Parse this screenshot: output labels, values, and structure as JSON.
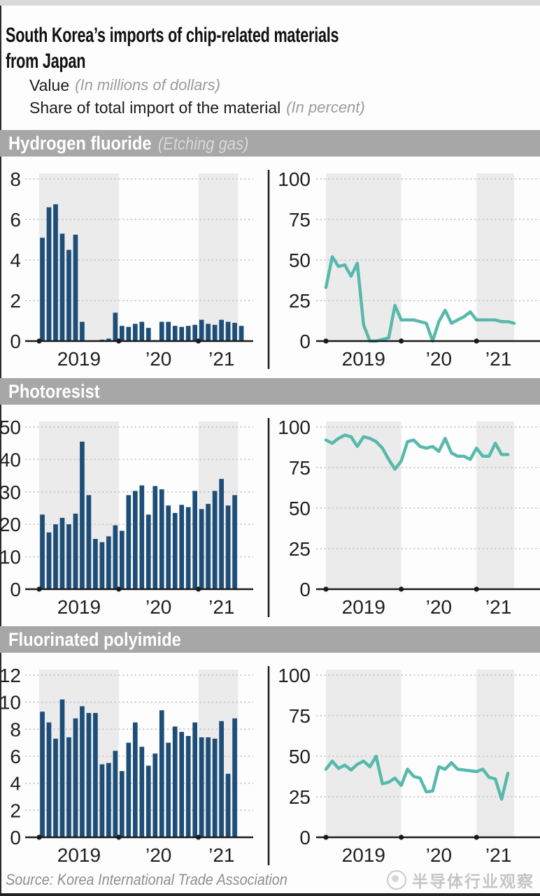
{
  "page_title": "South Korea’s imports of chip-related materials from Japan",
  "legend": {
    "value_label": "Value",
    "value_note": "(In millions of dollars)",
    "share_label": "Share of total import of the material",
    "share_note": "(In percent)"
  },
  "sections": [
    {
      "title": "Hydrogen fluoride",
      "note": "(Etching gas)"
    },
    {
      "title": "Photoresist",
      "note": ""
    },
    {
      "title": "Fluorinated polyimide",
      "note": ""
    }
  ],
  "source": "Source: Korea International Trade Association",
  "watermark": "半导体行业观察",
  "colors": {
    "bar": "#1d4e78",
    "line": "#57b9ac",
    "legend_line": "#82c7bc",
    "band": "#ebebeb",
    "grid": "#c8c8c8",
    "axis": "#1a1a1a",
    "tick_text": "#1f1f1f",
    "header_bg": "#a7a7a7"
  },
  "chart_data": [
    {
      "section": "Hydrogen fluoride",
      "type": "bar",
      "series_name": "Value",
      "unit": "millions of dollars",
      "frequency": "monthly",
      "start_month": "2019-01",
      "values": [
        5.1,
        6.6,
        6.75,
        5.3,
        4.5,
        5.25,
        0.95,
        0,
        0,
        0.07,
        0.12,
        1.4,
        0.75,
        0.7,
        0.85,
        0.95,
        0.65,
        0.05,
        0.95,
        0.95,
        0.75,
        0.7,
        0.75,
        0.8,
        1.05,
        0.85,
        0.8,
        1.05,
        0.95,
        0.9,
        0.75
      ],
      "ylim": [
        0,
        8
      ],
      "yticks": [
        0,
        2,
        4,
        6,
        8
      ],
      "xtick_labels": [
        "2019",
        "’20",
        "’21"
      ],
      "year_start_indices": [
        0,
        12,
        24
      ],
      "shaded_year_bands": [
        [
          0,
          12
        ],
        [
          24,
          30
        ]
      ],
      "grid": "dotted"
    },
    {
      "section": "Hydrogen fluoride",
      "type": "line",
      "series_name": "Share of total import",
      "unit": "percent",
      "frequency": "monthly",
      "start_month": "2019-01",
      "values": [
        33,
        52,
        46,
        47,
        40,
        48,
        10,
        0,
        0,
        1,
        2,
        22,
        13,
        13,
        13,
        12,
        11,
        0,
        12,
        19,
        11,
        13,
        15,
        18,
        13,
        13,
        13,
        13,
        12,
        12,
        11
      ],
      "ylim": [
        0,
        100
      ],
      "yticks": [
        0,
        25,
        50,
        75,
        100
      ],
      "xtick_labels": [
        "2019",
        "’20",
        "’21"
      ],
      "year_start_indices": [
        0,
        12,
        24
      ],
      "shaded_year_bands": [
        [
          0,
          12
        ],
        [
          24,
          30
        ]
      ],
      "grid": "dotted"
    },
    {
      "section": "Photoresist",
      "type": "bar",
      "series_name": "Value",
      "unit": "millions of dollars",
      "frequency": "monthly",
      "start_month": "2019-01",
      "values": [
        23,
        17.5,
        20,
        22,
        20,
        23.3,
        45.5,
        29,
        15.5,
        14.5,
        16.3,
        19.7,
        18,
        29,
        30.3,
        32,
        23,
        31.8,
        30.8,
        25.8,
        23.5,
        26,
        25.3,
        30.3,
        24.7,
        26.3,
        30.3,
        34,
        25.8,
        29
      ],
      "ylim": [
        0,
        50
      ],
      "yticks": [
        0,
        10,
        20,
        30,
        40,
        50
      ],
      "xtick_labels": [
        "2019",
        "’20",
        "’21"
      ],
      "year_start_indices": [
        0,
        12,
        24
      ],
      "shaded_year_bands": [
        [
          0,
          12
        ],
        [
          24,
          30
        ]
      ],
      "grid": "dotted"
    },
    {
      "section": "Photoresist",
      "type": "line",
      "series_name": "Share of total import",
      "unit": "percent",
      "frequency": "monthly",
      "start_month": "2019-01",
      "values": [
        92,
        90,
        93,
        95,
        94,
        88,
        94,
        93,
        91,
        87,
        80,
        74,
        79,
        91,
        92,
        88,
        87,
        88,
        85,
        93,
        84,
        82,
        82,
        80,
        87,
        82,
        82,
        90,
        83,
        83
      ],
      "ylim": [
        0,
        100
      ],
      "yticks": [
        0,
        25,
        50,
        75,
        100
      ],
      "xtick_labels": [
        "2019",
        "’20",
        "’21"
      ],
      "year_start_indices": [
        0,
        12,
        24
      ],
      "shaded_year_bands": [
        [
          0,
          12
        ],
        [
          24,
          30
        ]
      ],
      "grid": "dotted"
    },
    {
      "section": "Fluorinated polyimide",
      "type": "bar",
      "series_name": "Value",
      "unit": "millions of dollars",
      "frequency": "monthly",
      "start_month": "2019-01",
      "values": [
        9.3,
        8.5,
        7.3,
        10.2,
        7.4,
        8.8,
        9.7,
        9.2,
        9.2,
        5.4,
        5.5,
        6.4,
        4.9,
        7.0,
        8.5,
        6.7,
        5.3,
        6.2,
        9.4,
        7.0,
        8.2,
        7.8,
        7.5,
        8.5,
        7.4,
        7.4,
        7.3,
        8.6,
        4.7,
        8.8
      ],
      "ylim": [
        0,
        12
      ],
      "yticks": [
        0,
        2,
        4,
        6,
        8,
        10,
        12
      ],
      "xtick_labels": [
        "2019",
        "’20",
        "’21"
      ],
      "year_start_indices": [
        0,
        12,
        24
      ],
      "shaded_year_bands": [
        [
          0,
          12
        ],
        [
          24,
          30
        ]
      ],
      "grid": "dotted"
    },
    {
      "section": "Fluorinated polyimide",
      "type": "line",
      "series_name": "Share of total import",
      "unit": "percent",
      "frequency": "monthly",
      "start_month": "2019-01",
      "values": [
        42,
        47,
        42.5,
        44.5,
        41.5,
        45,
        47,
        43.5,
        50,
        33,
        34,
        36.5,
        32,
        42,
        37.5,
        36.5,
        28,
        28.5,
        43.5,
        42,
        46,
        42,
        41.5,
        41,
        40.5,
        42,
        37,
        36,
        23.5,
        39.5
      ],
      "ylim": [
        0,
        100
      ],
      "yticks": [
        0,
        25,
        50,
        75,
        100
      ],
      "xtick_labels": [
        "2019",
        "’20",
        "’21"
      ],
      "year_start_indices": [
        0,
        12,
        24
      ],
      "shaded_year_bands": [
        [
          0,
          12
        ],
        [
          24,
          30
        ]
      ],
      "grid": "dotted"
    }
  ]
}
